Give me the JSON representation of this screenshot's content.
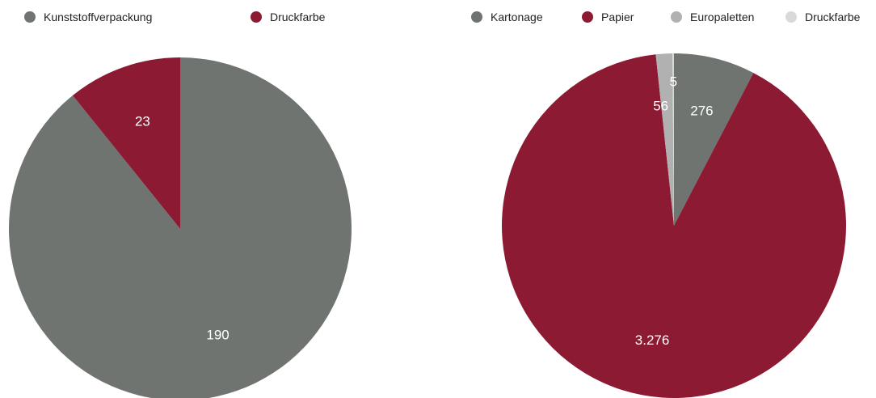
{
  "chart_data": [
    {
      "type": "pie",
      "title": "",
      "categories": [
        "Kunststoffverpackung",
        "Druckfarbe"
      ],
      "values": [
        190,
        23
      ],
      "value_labels": [
        "190",
        "23"
      ],
      "colors": [
        "#6f7471",
        "#8b1a32"
      ],
      "legend": "top",
      "start_angle_deg": 0
    },
    {
      "type": "pie",
      "title": "",
      "categories": [
        "Kartonage",
        "Papier",
        "Europaletten",
        "Druckfarbe"
      ],
      "values": [
        276,
        3276,
        56,
        5
      ],
      "value_labels": [
        "276",
        "3.276",
        "56",
        "5"
      ],
      "colors": [
        "#6f7471",
        "#8b1a32",
        "#b1b1b1",
        "#d9d9d9"
      ],
      "legend": "top",
      "start_angle_deg": 0
    }
  ]
}
